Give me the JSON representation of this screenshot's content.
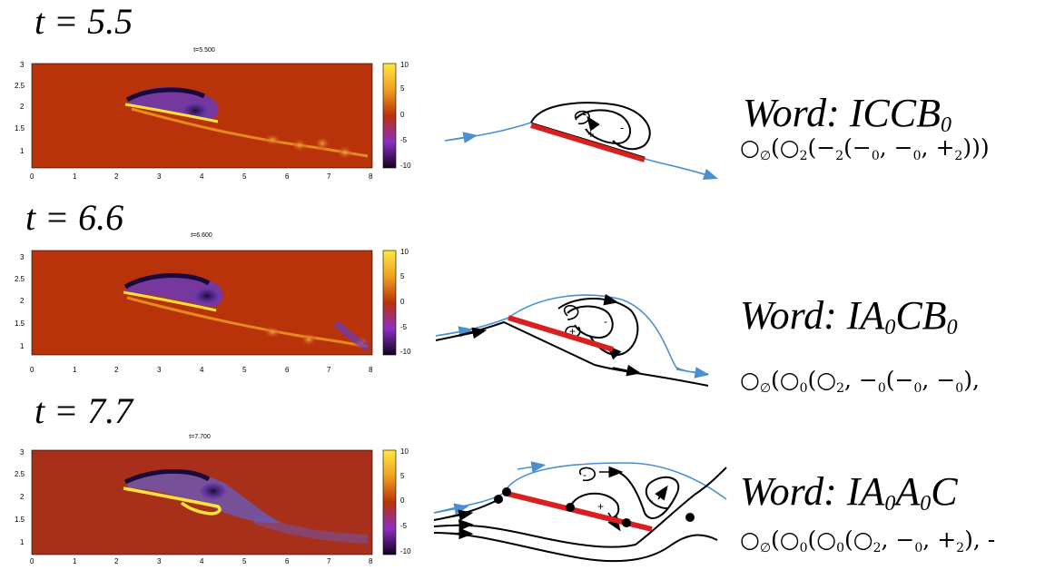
{
  "panels": [
    {
      "time_label": "t = 5.5",
      "plot_title": "t=5.500",
      "word": {
        "prefix": "Word: ",
        "letters": [
          [
            "I",
            ""
          ],
          [
            "C",
            ""
          ],
          [
            "C",
            ""
          ],
          [
            "B",
            "0"
          ]
        ]
      },
      "formula_parts": [
        [
          "○",
          "∅"
        ],
        [
          "(○",
          "2"
        ],
        [
          "(−",
          "2"
        ],
        [
          "(−",
          "0"
        ],
        [
          ", −",
          "0"
        ],
        [
          ", +",
          "2"
        ],
        [
          ")))",
          ""
        ]
      ]
    },
    {
      "time_label": "t = 6.6",
      "plot_title": "t=6.600",
      "word": {
        "prefix": "Word: ",
        "letters": [
          [
            "I",
            ""
          ],
          [
            "A",
            "0"
          ],
          [
            "C",
            ""
          ],
          [
            "B",
            "0"
          ]
        ]
      },
      "formula_parts": [
        [
          "○",
          "∅"
        ],
        [
          "(○",
          "0"
        ],
        [
          "(○",
          "2"
        ],
        [
          ", −",
          "0"
        ],
        [
          "(−",
          "0"
        ],
        [
          ", −",
          "0"
        ],
        [
          "),",
          ""
        ]
      ]
    },
    {
      "time_label": "t = 7.7",
      "plot_title": "t=7.700",
      "word": {
        "prefix": "Word: ",
        "letters": [
          [
            "I",
            ""
          ],
          [
            "A",
            "0"
          ],
          [
            "A",
            "0"
          ],
          [
            "C",
            ""
          ]
        ]
      },
      "formula_parts": [
        [
          "○",
          "∅"
        ],
        [
          "(○",
          "0"
        ],
        [
          "(○",
          "0"
        ],
        [
          "(○",
          "2"
        ],
        [
          ", −",
          "0"
        ],
        [
          ", +",
          "2"
        ],
        [
          "), -",
          ""
        ]
      ]
    }
  ],
  "axes": {
    "x_ticks": [
      "0",
      "1",
      "2",
      "3",
      "4",
      "5",
      "6",
      "7",
      "8"
    ],
    "y_ticks": [
      "3",
      "2.5",
      "2",
      "1.5",
      "1"
    ],
    "colorbar_ticks": [
      "10",
      "5",
      "0",
      "-5",
      "-10"
    ]
  },
  "diagram_signs": {
    "panel1": [
      "-",
      "-",
      "+"
    ],
    "panel2": [
      "-",
      "-",
      "+"
    ],
    "panel3": [
      "-",
      "+",
      "-"
    ]
  },
  "colors": {
    "field_background": "#b8320a",
    "vortex_dark": "#1a0a3a",
    "vortex_purple": "#6a3ab8",
    "vortex_yellow": "#ffe23a",
    "plate_red": "#d82020",
    "streamline_blue": "#4a90d0"
  }
}
